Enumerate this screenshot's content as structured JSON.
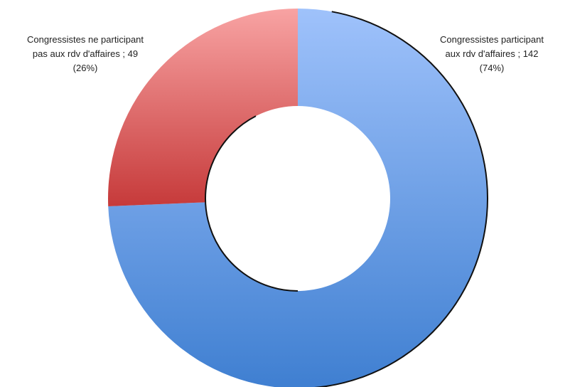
{
  "chart_data": {
    "type": "donut",
    "slices": [
      {
        "label_lines": [
          "Congressistes participant",
          "aux rdv d'affaires ; 142",
          "(74%)"
        ],
        "value": 142,
        "percent": 74,
        "color_top": "#9fc2fb",
        "color_bottom": "#3f7fd1"
      },
      {
        "label_lines": [
          "Congressistes ne participant",
          "pas aux rdv d'affaires ; 49",
          "(26%)"
        ],
        "value": 49,
        "percent": 26,
        "color_top": "#f8a3a3",
        "color_bottom": "#c63a3a"
      }
    ],
    "start_angle_deg": 0,
    "direction": "clockwise",
    "legend": "none"
  }
}
